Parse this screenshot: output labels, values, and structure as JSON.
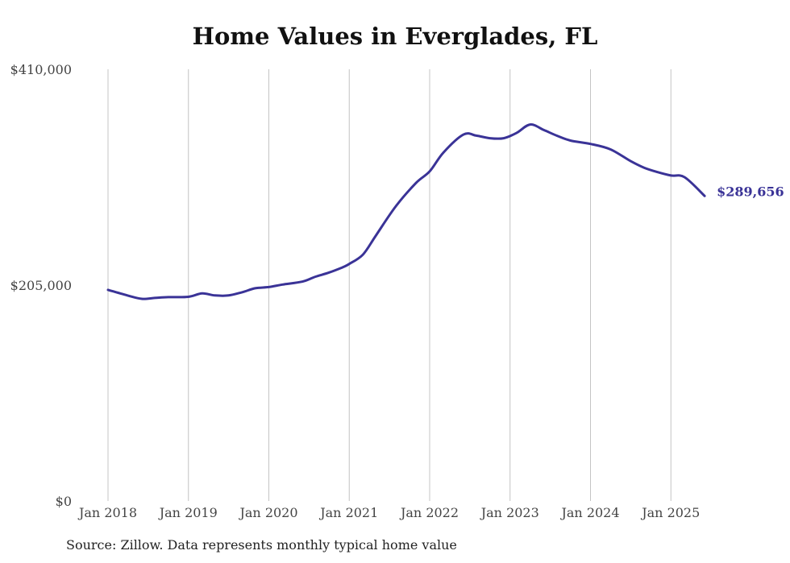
{
  "chart_data": {
    "type": "line",
    "title": "Home Values in Everglades, FL",
    "source": "Source: Zillow. Data represents monthly typical home value",
    "ylim": [
      0,
      410000
    ],
    "y_ticks": [
      {
        "value": 0,
        "label": "$0"
      },
      {
        "value": 205000,
        "label": "$205,000"
      },
      {
        "value": 410000,
        "label": "$410,000"
      }
    ],
    "x_ticks": [
      {
        "value": 2018.0,
        "label": "Jan 2018"
      },
      {
        "value": 2019.0,
        "label": "Jan 2019"
      },
      {
        "value": 2020.0,
        "label": "Jan 2020"
      },
      {
        "value": 2021.0,
        "label": "Jan 2021"
      },
      {
        "value": 2022.0,
        "label": "Jan 2022"
      },
      {
        "value": 2023.0,
        "label": "Jan 2023"
      },
      {
        "value": 2024.0,
        "label": "Jan 2024"
      },
      {
        "value": 2025.0,
        "label": "Jan 2025"
      }
    ],
    "grid": "vertical",
    "line_color": "#3a3397",
    "end_label": "$289,656",
    "series": [
      {
        "x": [
          2018.0,
          2018.25,
          2018.42,
          2018.58,
          2018.75,
          2019.0,
          2019.17,
          2019.33,
          2019.5,
          2019.67,
          2019.83,
          2020.0,
          2020.17,
          2020.42,
          2020.58,
          2020.75,
          2020.92,
          2021.0,
          2021.17,
          2021.33,
          2021.58,
          2021.83,
          2022.0,
          2022.17,
          2022.42,
          2022.58,
          2022.75,
          2022.92,
          2023.08,
          2023.25,
          2023.42,
          2023.58,
          2023.75,
          2024.0,
          2024.25,
          2024.5,
          2024.67,
          2024.83,
          2025.0,
          2025.17,
          2025.42
        ],
        "y": [
          200500,
          195000,
          192000,
          192800,
          193600,
          193900,
          197100,
          195200,
          195200,
          198300,
          202000,
          203200,
          205500,
          208400,
          213000,
          217000,
          222000,
          225100,
          234000,
          252000,
          280000,
          302000,
          313000,
          330800,
          348000,
          347000,
          344500,
          344500,
          349500,
          357500,
          352300,
          347000,
          342300,
          339100,
          333900,
          322700,
          316400,
          312400,
          309100,
          307500,
          289656
        ]
      }
    ]
  }
}
